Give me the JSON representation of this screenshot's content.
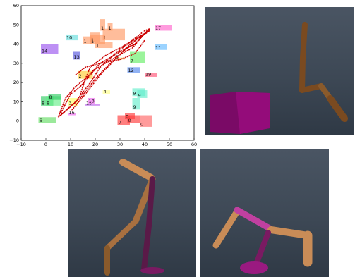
{
  "plot": {
    "x_ticks": [
      "−10",
      "0",
      "10",
      "20",
      "30",
      "40",
      "50",
      "60"
    ],
    "y_ticks": [
      "−10",
      "0",
      "10",
      "20",
      "30",
      "40",
      "50",
      "60"
    ],
    "x_range": [
      -10,
      60
    ],
    "y_range": [
      -10,
      60
    ],
    "rects": [
      {
        "label": "0",
        "x": 29,
        "y": -2,
        "w": 5,
        "h": 5,
        "color": "#ff3b3b"
      },
      {
        "label": "0",
        "x": 33,
        "y": -1,
        "w": 5,
        "h": 4,
        "color": "#ff3b3b"
      },
      {
        "label": "0",
        "x": 38,
        "y": -3,
        "w": 5,
        "h": 6,
        "color": "#ff6666"
      },
      {
        "label": "0",
        "x": 32,
        "y": 1,
        "w": 4,
        "h": 3,
        "color": "#ff3b3b"
      },
      {
        "label": "1",
        "x": 15,
        "y": 40,
        "w": 4,
        "h": 4,
        "color": "#ff9966"
      },
      {
        "label": "1",
        "x": 18,
        "y": 41,
        "w": 4,
        "h": 5,
        "color": "#ff9966"
      },
      {
        "label": "1",
        "x": 20,
        "y": 38,
        "w": 7,
        "h": 3,
        "color": "#ff9966"
      },
      {
        "label": "1",
        "x": 23,
        "y": 42,
        "w": 9,
        "h": 6,
        "color": "#ff9966"
      },
      {
        "label": "1",
        "x": 22,
        "y": 47,
        "w": 2,
        "h": 6,
        "color": "#ff9966"
      },
      {
        "label": "1",
        "x": 25,
        "y": 47,
        "w": 2,
        "h": 4,
        "color": "#ff9966"
      },
      {
        "label": "1",
        "x": 18,
        "y": 40,
        "w": 6,
        "h": 5,
        "color": "#ff9966"
      },
      {
        "label": "2",
        "x": 13,
        "y": 22,
        "w": 6,
        "h": 4,
        "color": "#ffcc33"
      },
      {
        "label": "3",
        "x": 9,
        "y": 8,
        "w": 4,
        "h": 4,
        "color": "#ffff66"
      },
      {
        "label": "4",
        "x": 23,
        "y": 14,
        "w": 3,
        "h": 2,
        "color": "#ffff88"
      },
      {
        "label": "5",
        "x": 28,
        "y": 32,
        "w": 4,
        "h": 1,
        "color": "#ffd066"
      },
      {
        "label": "6",
        "x": -3,
        "y": -1,
        "w": 7,
        "h": 3,
        "color": "#66dd66"
      },
      {
        "label": "7",
        "x": 34,
        "y": 30,
        "w": 6,
        "h": 6,
        "color": "#66ee66"
      },
      {
        "label": "8",
        "x": -2,
        "y": 8,
        "w": 5,
        "h": 5,
        "color": "#33cc66"
      },
      {
        "label": "8",
        "x": 0,
        "y": 8,
        "w": 6,
        "h": 5,
        "color": "#66ee88"
      },
      {
        "label": "8",
        "x": 1,
        "y": 11,
        "w": 5,
        "h": 3,
        "color": "#33cc66"
      },
      {
        "label": "9",
        "x": 35,
        "y": 13,
        "w": 5,
        "h": 4,
        "color": "#66eecc"
      },
      {
        "label": "9",
        "x": 37,
        "y": 12,
        "w": 4,
        "h": 4,
        "color": "#66eecc"
      },
      {
        "label": "9",
        "x": 35,
        "y": 6,
        "w": 3,
        "h": 6,
        "color": "#66eecc"
      },
      {
        "label": "10",
        "x": 8,
        "y": 42,
        "w": 5,
        "h": 3,
        "color": "#66dddd"
      },
      {
        "label": "11",
        "x": 44,
        "y": 37,
        "w": 5,
        "h": 3,
        "color": "#66bbff"
      },
      {
        "label": "12",
        "x": 33,
        "y": 25,
        "w": 5,
        "h": 3,
        "color": "#5588ee"
      },
      {
        "label": "13",
        "x": 11,
        "y": 32,
        "w": 3,
        "h": 4,
        "color": "#5555dd"
      },
      {
        "label": "14",
        "x": -2,
        "y": 35,
        "w": 7,
        "h": 5,
        "color": "#9955ee"
      },
      {
        "label": "15",
        "x": 16,
        "y": 8,
        "w": 6,
        "h": 1,
        "color": "#bb66ee"
      },
      {
        "label": "16",
        "x": 9,
        "y": 3,
        "w": 3,
        "h": 1,
        "color": "#ee66ee"
      },
      {
        "label": "17",
        "x": 44,
        "y": 47,
        "w": 7,
        "h": 3,
        "color": "#ff66cc"
      },
      {
        "label": "18",
        "x": 17,
        "y": 9,
        "w": 3,
        "h": 3,
        "color": "#ee66ee"
      },
      {
        "label": "19",
        "x": 40,
        "y": 23,
        "w": 5,
        "h": 2,
        "color": "#ff5577"
      }
    ],
    "path_color": "#cc0000"
  },
  "renders": {
    "background": "#3d4855",
    "limb_color": "#8a5a2b",
    "joint_color": "#7a4a20",
    "box_color": "#8a0a70",
    "highlight_color": "#c04090",
    "alt_limb_color": "#c98c57"
  }
}
